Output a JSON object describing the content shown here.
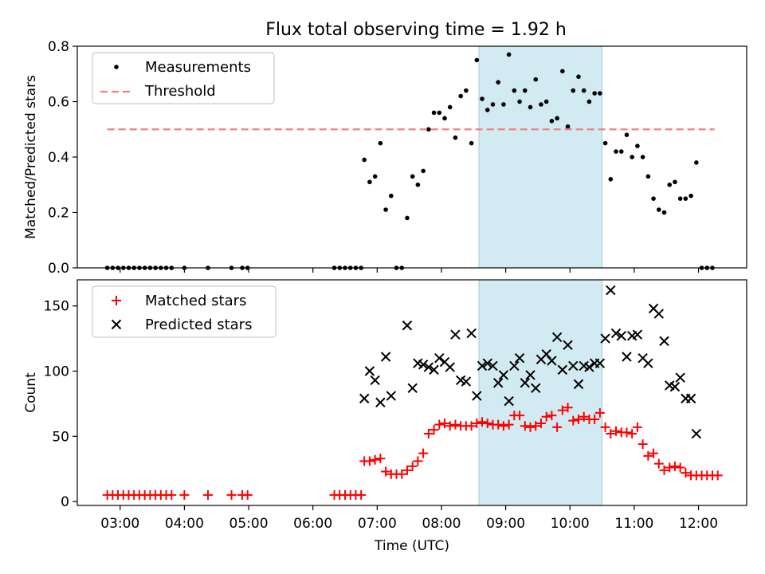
{
  "figure": {
    "title": "Flux total observing time = 1.92 h"
  },
  "chart_data": [
    {
      "type": "scatter",
      "ylabel": "Matched/Predicted stars",
      "xlabel": "",
      "xlim": [
        "02:20",
        "12:45"
      ],
      "ylim": [
        0,
        0.8
      ],
      "yticks": [
        0,
        0.2,
        0.4,
        0.6,
        0.8
      ],
      "ytick_labels": [
        "0.0",
        "0.2",
        "0.4",
        "0.6",
        "0.8"
      ],
      "grid": false,
      "legend_position": "top-left",
      "shaded_interval": {
        "x": [
          "08:35",
          "10:30"
        ],
        "color": "#add8e6"
      },
      "series": [
        {
          "name": "Measurements",
          "marker": "dot",
          "color": "#000000",
          "points": [
            [
              "02:48",
              0
            ],
            [
              "02:53",
              0
            ],
            [
              "02:58",
              0
            ],
            [
              "03:03",
              0
            ],
            [
              "03:08",
              0
            ],
            [
              "03:13",
              0
            ],
            [
              "03:18",
              0
            ],
            [
              "03:23",
              0
            ],
            [
              "03:28",
              0
            ],
            [
              "03:33",
              0
            ],
            [
              "03:38",
              0
            ],
            [
              "03:43",
              0
            ],
            [
              "03:48",
              0
            ],
            [
              "04:00",
              0
            ],
            [
              "04:22",
              0
            ],
            [
              "04:44",
              0
            ],
            [
              "04:54",
              0
            ],
            [
              "04:59",
              0
            ],
            [
              "06:20",
              0
            ],
            [
              "06:25",
              0
            ],
            [
              "06:30",
              0
            ],
            [
              "06:35",
              0
            ],
            [
              "06:40",
              0
            ],
            [
              "06:45",
              0
            ],
            [
              "06:48",
              0.39
            ],
            [
              "06:53",
              0.31
            ],
            [
              "06:58",
              0.33
            ],
            [
              "07:03",
              0.45
            ],
            [
              "07:08",
              0.21
            ],
            [
              "07:13",
              0.26
            ],
            [
              "07:18",
              0
            ],
            [
              "07:23",
              0
            ],
            [
              "07:28",
              0.18
            ],
            [
              "07:33",
              0.33
            ],
            [
              "07:38",
              0.3
            ],
            [
              "07:43",
              0.35
            ],
            [
              "07:48",
              0.5
            ],
            [
              "07:53",
              0.56
            ],
            [
              "07:58",
              0.56
            ],
            [
              "08:03",
              0.54
            ],
            [
              "08:08",
              0.58
            ],
            [
              "08:13",
              0.47
            ],
            [
              "08:18",
              0.62
            ],
            [
              "08:23",
              0.64
            ],
            [
              "08:28",
              0.45
            ],
            [
              "08:33",
              0.75
            ],
            [
              "08:38",
              0.61
            ],
            [
              "08:43",
              0.57
            ],
            [
              "08:48",
              0.59
            ],
            [
              "08:53",
              0.67
            ],
            [
              "08:58",
              0.59
            ],
            [
              "09:03",
              0.77
            ],
            [
              "09:08",
              0.64
            ],
            [
              "09:13",
              0.6
            ],
            [
              "09:18",
              0.64
            ],
            [
              "09:23",
              0.58
            ],
            [
              "09:28",
              0.68
            ],
            [
              "09:33",
              0.59
            ],
            [
              "09:38",
              0.6
            ],
            [
              "09:43",
              0.53
            ],
            [
              "09:48",
              0.54
            ],
            [
              "09:53",
              0.71
            ],
            [
              "09:58",
              0.51
            ],
            [
              "10:03",
              0.64
            ],
            [
              "10:08",
              0.69
            ],
            [
              "10:13",
              0.64
            ],
            [
              "10:18",
              0.6
            ],
            [
              "10:23",
              0.63
            ],
            [
              "10:28",
              0.63
            ],
            [
              "10:33",
              0.45
            ],
            [
              "10:38",
              0.32
            ],
            [
              "10:43",
              0.42
            ],
            [
              "10:48",
              0.42
            ],
            [
              "10:53",
              0.48
            ],
            [
              "10:58",
              0.4
            ],
            [
              "11:03",
              0.44
            ],
            [
              "11:08",
              0.4
            ],
            [
              "11:13",
              0.33
            ],
            [
              "11:18",
              0.25
            ],
            [
              "11:23",
              0.21
            ],
            [
              "11:28",
              0.2
            ],
            [
              "11:33",
              0.3
            ],
            [
              "11:38",
              0.31
            ],
            [
              "11:43",
              0.25
            ],
            [
              "11:48",
              0.25
            ],
            [
              "11:53",
              0.26
            ],
            [
              "11:58",
              0.38
            ],
            [
              "12:03",
              0
            ],
            [
              "12:08",
              0
            ],
            [
              "12:13",
              0
            ]
          ]
        },
        {
          "name": "Threshold",
          "marker": "dashed-line",
          "color": "#f08080",
          "points": [
            [
              "02:48",
              0.5
            ],
            [
              "12:15",
              0.5
            ]
          ]
        }
      ]
    },
    {
      "type": "scatter",
      "ylabel": "Count",
      "xlabel": "Time (UTC)",
      "xlim": [
        "02:20",
        "12:45"
      ],
      "ylim": [
        -3,
        170
      ],
      "yticks": [
        0,
        50,
        100,
        150
      ],
      "ytick_labels": [
        "0",
        "50",
        "100",
        "150"
      ],
      "xticks": [
        "03:00",
        "04:00",
        "05:00",
        "06:00",
        "07:00",
        "08:00",
        "09:00",
        "10:00",
        "11:00",
        "12:00"
      ],
      "grid": false,
      "legend_position": "top-left",
      "shaded_interval": {
        "x": [
          "08:35",
          "10:30"
        ],
        "color": "#add8e6"
      },
      "series": [
        {
          "name": "Matched stars",
          "marker": "plus",
          "color": "#ff0000",
          "points": [
            [
              "02:48",
              5
            ],
            [
              "02:53",
              5
            ],
            [
              "02:58",
              5
            ],
            [
              "03:03",
              5
            ],
            [
              "03:08",
              5
            ],
            [
              "03:13",
              5
            ],
            [
              "03:18",
              5
            ],
            [
              "03:23",
              5
            ],
            [
              "03:28",
              5
            ],
            [
              "03:33",
              5
            ],
            [
              "03:38",
              5
            ],
            [
              "03:43",
              5
            ],
            [
              "03:48",
              5
            ],
            [
              "04:00",
              5
            ],
            [
              "04:22",
              5
            ],
            [
              "04:44",
              5
            ],
            [
              "04:54",
              5
            ],
            [
              "04:59",
              5
            ],
            [
              "06:20",
              5
            ],
            [
              "06:25",
              5
            ],
            [
              "06:30",
              5
            ],
            [
              "06:35",
              5
            ],
            [
              "06:40",
              5
            ],
            [
              "06:45",
              5
            ],
            [
              "06:48",
              31
            ],
            [
              "06:53",
              31
            ],
            [
              "06:58",
              32
            ],
            [
              "07:03",
              33
            ],
            [
              "07:08",
              23
            ],
            [
              "07:13",
              21
            ],
            [
              "07:18",
              21
            ],
            [
              "07:23",
              21
            ],
            [
              "07:28",
              24
            ],
            [
              "07:33",
              27
            ],
            [
              "07:38",
              31
            ],
            [
              "07:43",
              37
            ],
            [
              "07:48",
              52
            ],
            [
              "07:53",
              55
            ],
            [
              "07:58",
              59
            ],
            [
              "08:03",
              60
            ],
            [
              "08:08",
              58
            ],
            [
              "08:13",
              59
            ],
            [
              "08:18",
              58
            ],
            [
              "08:23",
              58
            ],
            [
              "08:28",
              58
            ],
            [
              "08:33",
              60
            ],
            [
              "08:38",
              61
            ],
            [
              "08:43",
              60
            ],
            [
              "08:48",
              59
            ],
            [
              "08:53",
              59
            ],
            [
              "08:58",
              58
            ],
            [
              "09:03",
              59
            ],
            [
              "09:08",
              66
            ],
            [
              "09:13",
              66
            ],
            [
              "09:18",
              58
            ],
            [
              "09:23",
              57
            ],
            [
              "09:28",
              58
            ],
            [
              "09:33",
              60
            ],
            [
              "09:38",
              65
            ],
            [
              "09:43",
              66
            ],
            [
              "09:48",
              57
            ],
            [
              "09:53",
              70
            ],
            [
              "09:58",
              72
            ],
            [
              "10:03",
              62
            ],
            [
              "10:08",
              63
            ],
            [
              "10:13",
              65
            ],
            [
              "10:18",
              63
            ],
            [
              "10:23",
              63
            ],
            [
              "10:28",
              68
            ],
            [
              "10:33",
              57
            ],
            [
              "10:38",
              52
            ],
            [
              "10:43",
              54
            ],
            [
              "10:48",
              53
            ],
            [
              "10:53",
              53
            ],
            [
              "10:58",
              52
            ],
            [
              "11:03",
              57
            ],
            [
              "11:08",
              44
            ],
            [
              "11:13",
              35
            ],
            [
              "11:18",
              37
            ],
            [
              "11:23",
              29
            ],
            [
              "11:28",
              24
            ],
            [
              "11:33",
              26
            ],
            [
              "11:38",
              27
            ],
            [
              "11:43",
              26
            ],
            [
              "11:48",
              22
            ],
            [
              "11:53",
              20
            ],
            [
              "11:58",
              20
            ],
            [
              "12:03",
              20
            ],
            [
              "12:08",
              20
            ],
            [
              "12:13",
              20
            ],
            [
              "12:18",
              20
            ]
          ]
        },
        {
          "name": "Predicted stars",
          "marker": "x",
          "color": "#000000",
          "points": [
            [
              "06:48",
              79
            ],
            [
              "06:53",
              100
            ],
            [
              "06:58",
              93
            ],
            [
              "07:03",
              76
            ],
            [
              "07:08",
              111
            ],
            [
              "07:13",
              81
            ],
            [
              "07:28",
              135
            ],
            [
              "07:33",
              87
            ],
            [
              "07:38",
              106
            ],
            [
              "07:43",
              105
            ],
            [
              "07:48",
              103
            ],
            [
              "07:53",
              101
            ],
            [
              "07:58",
              110
            ],
            [
              "08:03",
              107
            ],
            [
              "08:08",
              103
            ],
            [
              "08:13",
              128
            ],
            [
              "08:18",
              93
            ],
            [
              "08:23",
              92
            ],
            [
              "08:28",
              129
            ],
            [
              "08:33",
              81
            ],
            [
              "08:38",
              104
            ],
            [
              "08:43",
              106
            ],
            [
              "08:48",
              104
            ],
            [
              "08:53",
              91
            ],
            [
              "08:58",
              97
            ],
            [
              "09:03",
              77
            ],
            [
              "09:08",
              104
            ],
            [
              "09:13",
              110
            ],
            [
              "09:18",
              91
            ],
            [
              "09:23",
              97
            ],
            [
              "09:28",
              87
            ],
            [
              "09:33",
              109
            ],
            [
              "09:38",
              113
            ],
            [
              "09:43",
              108
            ],
            [
              "09:48",
              126
            ],
            [
              "09:53",
              101
            ],
            [
              "09:58",
              120
            ],
            [
              "10:03",
              104
            ],
            [
              "10:08",
              90
            ],
            [
              "10:13",
              104
            ],
            [
              "10:18",
              103
            ],
            [
              "10:23",
              106
            ],
            [
              "10:28",
              106
            ],
            [
              "10:33",
              125
            ],
            [
              "10:38",
              162
            ],
            [
              "10:43",
              129
            ],
            [
              "10:48",
              127
            ],
            [
              "10:53",
              111
            ],
            [
              "10:58",
              127
            ],
            [
              "11:03",
              128
            ],
            [
              "11:08",
              110
            ],
            [
              "11:13",
              106
            ],
            [
              "11:18",
              148
            ],
            [
              "11:23",
              144
            ],
            [
              "11:28",
              123
            ],
            [
              "11:33",
              89
            ],
            [
              "11:38",
              88
            ],
            [
              "11:43",
              95
            ],
            [
              "11:48",
              79
            ],
            [
              "11:53",
              79
            ],
            [
              "11:58",
              52
            ]
          ]
        }
      ]
    }
  ]
}
